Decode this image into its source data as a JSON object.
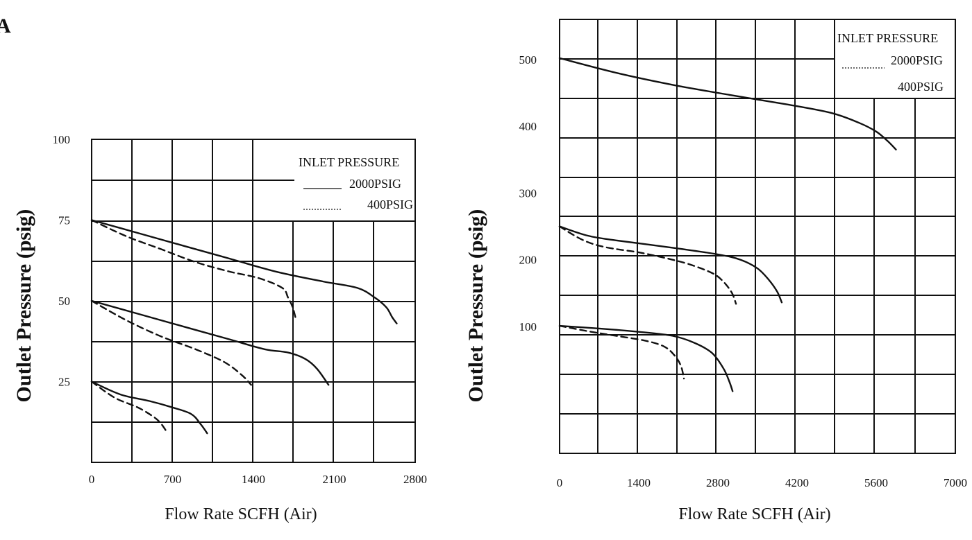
{
  "corner_mark": "A",
  "chart_data": [
    {
      "type": "line",
      "xlabel": "Flow Rate SCFH  (Air)",
      "ylabel": "Outlet Pressure (psig)",
      "xlim": [
        0,
        2800
      ],
      "ylim": [
        0,
        100
      ],
      "x_ticks": [
        0,
        700,
        1400,
        2100,
        2800
      ],
      "y_ticks": [
        25,
        50,
        75,
        100
      ],
      "x_tick_labels": [
        "0",
        "700",
        "1400",
        "2100",
        "2800"
      ],
      "y_tick_labels": [
        "25",
        "50",
        "75",
        "100"
      ],
      "grid": true,
      "legend": {
        "title": "INLET PRESSURE",
        "position": "top-right",
        "entries": [
          {
            "label": "2000PSIG",
            "style": "solid"
          },
          {
            "label": "400PSIG",
            "style": "dashed"
          }
        ]
      },
      "series": [
        {
          "style": "solid",
          "x": [
            0,
            400,
            800,
            1200,
            1600,
            2000,
            2300,
            2450,
            2550,
            2600,
            2640
          ],
          "y": [
            75,
            71,
            67,
            63,
            59,
            56,
            54,
            51,
            48,
            45,
            43
          ]
        },
        {
          "style": "dashed",
          "x": [
            0,
            300,
            600,
            900,
            1200,
            1450,
            1650,
            1700,
            1740,
            1770
          ],
          "y": [
            75,
            70,
            66,
            62,
            59,
            57,
            54,
            51,
            48,
            44
          ]
        },
        {
          "style": "solid",
          "x": [
            0,
            400,
            800,
            1200,
            1500,
            1700,
            1850,
            1950,
            2050
          ],
          "y": [
            50,
            46,
            42,
            38,
            35,
            34,
            32,
            29,
            24
          ]
        },
        {
          "style": "dashed",
          "x": [
            0,
            300,
            600,
            900,
            1150,
            1300,
            1380
          ],
          "y": [
            50,
            44,
            39,
            35,
            31,
            27,
            24
          ]
        },
        {
          "style": "solid",
          "x": [
            0,
            250,
            500,
            700,
            860,
            940,
            1000
          ],
          "y": [
            25,
            21,
            19,
            17,
            15,
            12,
            9
          ]
        },
        {
          "style": "dashed",
          "x": [
            0,
            200,
            400,
            540,
            600,
            640
          ],
          "y": [
            25,
            20,
            17,
            14,
            12,
            10
          ]
        }
      ]
    },
    {
      "type": "line",
      "xlabel": "Flow Rate SCFH  (Air)",
      "ylabel": "Outlet Pressure (psig)",
      "xlim": [
        0,
        7000
      ],
      "ylim": [
        -90,
        560
      ],
      "x_ticks": [
        0,
        1400,
        2800,
        4200,
        5600,
        7000
      ],
      "y_ticks": [
        100,
        200,
        300,
        400,
        500
      ],
      "x_tick_labels": [
        "0",
        "1400",
        "2800",
        "4200",
        "5600",
        "7000"
      ],
      "y_tick_labels": [
        "100",
        "200",
        "300",
        "400",
        "500"
      ],
      "grid": true,
      "legend": {
        "title": "INLET PRESSURE",
        "position": "top-right",
        "entries": [
          {
            "label": "2000PSIG",
            "style": "dashed"
          },
          {
            "label": "400PSIG",
            "style": "none"
          }
        ]
      },
      "series": [
        {
          "style": "solid",
          "x": [
            0,
            1000,
            2000,
            3000,
            4000,
            4800,
            5300,
            5600,
            5800,
            5950
          ],
          "y": [
            502,
            480,
            462,
            447,
            433,
            420,
            405,
            392,
            378,
            365
          ]
        },
        {
          "style": "solid",
          "x": [
            0,
            500,
            1000,
            2000,
            2800,
            3200,
            3500,
            3700,
            3850,
            3930
          ],
          "y": [
            250,
            236,
            229,
            218,
            208,
            200,
            187,
            170,
            152,
            136
          ]
        },
        {
          "style": "dashed",
          "x": [
            0,
            400,
            800,
            1400,
            1900,
            2300,
            2700,
            2900,
            3050,
            3120
          ],
          "y": [
            250,
            230,
            219,
            211,
            202,
            193,
            180,
            167,
            150,
            134
          ]
        },
        {
          "style": "solid",
          "x": [
            0,
            700,
            1400,
            2000,
            2400,
            2700,
            2900,
            3000,
            3060
          ],
          "y": [
            101,
            97,
            92,
            86,
            75,
            60,
            37,
            18,
            3
          ]
        },
        {
          "style": "dashed",
          "x": [
            0,
            500,
            1000,
            1500,
            1850,
            2050,
            2150,
            2200
          ],
          "y": [
            101,
            93,
            86,
            79,
            70,
            55,
            40,
            22
          ]
        }
      ]
    }
  ]
}
